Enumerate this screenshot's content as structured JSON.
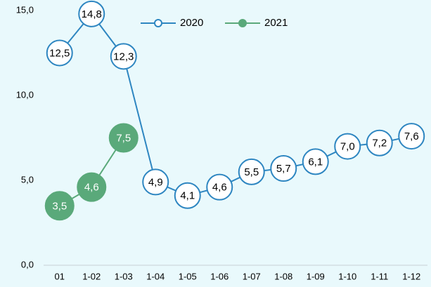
{
  "chart_data": {
    "type": "line",
    "categories": [
      "01",
      "1-02",
      "1-03",
      "1-04",
      "1-05",
      "1-06",
      "1-07",
      "1-08",
      "1-09",
      "1-10",
      "1-11",
      "1-12"
    ],
    "series": [
      {
        "name": "2020",
        "color": "#2e86c1",
        "values": [
          12.5,
          14.8,
          12.3,
          4.9,
          4.1,
          4.6,
          5.5,
          5.7,
          6.1,
          7.0,
          7.2,
          7.6
        ],
        "value_labels": [
          "12,5",
          "14,8",
          "12,3",
          "4,9",
          "4,1",
          "4,6",
          "5,5",
          "5,7",
          "6,1",
          "7,0",
          "7,2",
          "7,6"
        ]
      },
      {
        "name": "2021",
        "color": "#5aa97a",
        "values": [
          3.5,
          4.6,
          7.5,
          null,
          null,
          null,
          null,
          null,
          null,
          null,
          null,
          null
        ],
        "value_labels": [
          "3,5",
          "4,6",
          "7,5",
          null,
          null,
          null,
          null,
          null,
          null,
          null,
          null,
          null
        ]
      }
    ],
    "ylim": [
      0,
      15
    ],
    "yticks": [
      {
        "value": 0,
        "label": "0,0"
      },
      {
        "value": 5,
        "label": "5,0"
      },
      {
        "value": 10,
        "label": "10,0"
      },
      {
        "value": 15,
        "label": "15,0"
      }
    ],
    "legend": "top"
  }
}
